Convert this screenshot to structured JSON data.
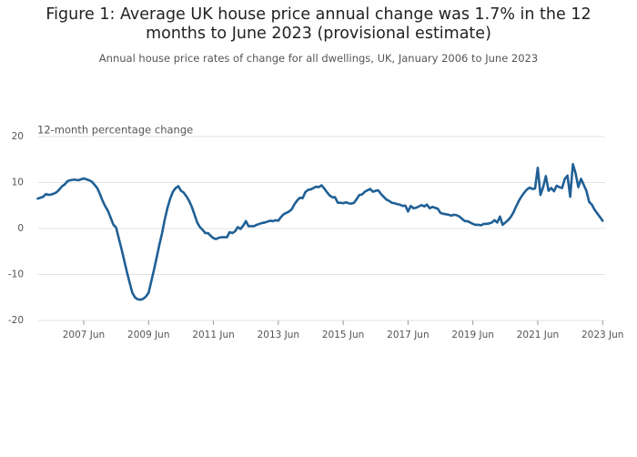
{
  "chart_data": {
    "type": "line",
    "title": "Figure 1: Average UK house price annual change was 1.7% in the 12 months to June 2023 (provisional estimate)",
    "subtitle": "Annual house price rates of change for all dwellings, UK, January 2006 to June 2023",
    "y_label": "12-month percentage change",
    "color": "#206095",
    "grid": true,
    "ylim": [
      -20,
      20
    ],
    "yticks": [
      -20,
      -10,
      0,
      10,
      20
    ],
    "xticks": [
      "2007 Jun",
      "2009 Jun",
      "2011 Jun",
      "2013 Jun",
      "2015 Jun",
      "2017 Jun",
      "2019 Jun",
      "2021 Jun",
      "2023 Jun"
    ],
    "x": [
      "2006 Jan",
      "2006 Feb",
      "2006 Mar",
      "2006 Apr",
      "2006 May",
      "2006 Jun",
      "2006 Jul",
      "2006 Aug",
      "2006 Sep",
      "2006 Oct",
      "2006 Nov",
      "2006 Dec",
      "2007 Jan",
      "2007 Feb",
      "2007 Mar",
      "2007 Apr",
      "2007 May",
      "2007 Jun",
      "2007 Jul",
      "2007 Aug",
      "2007 Sep",
      "2007 Oct",
      "2007 Nov",
      "2007 Dec",
      "2008 Jan",
      "2008 Feb",
      "2008 Mar",
      "2008 Apr",
      "2008 May",
      "2008 Jun",
      "2008 Jul",
      "2008 Aug",
      "2008 Sep",
      "2008 Oct",
      "2008 Nov",
      "2008 Dec",
      "2009 Jan",
      "2009 Feb",
      "2009 Mar",
      "2009 Apr",
      "2009 May",
      "2009 Jun",
      "2009 Jul",
      "2009 Aug",
      "2009 Sep",
      "2009 Oct",
      "2009 Nov",
      "2009 Dec",
      "2010 Jan",
      "2010 Feb",
      "2010 Mar",
      "2010 Apr",
      "2010 May",
      "2010 Jun",
      "2010 Jul",
      "2010 Aug",
      "2010 Sep",
      "2010 Oct",
      "2010 Nov",
      "2010 Dec",
      "2011 Jan",
      "2011 Feb",
      "2011 Mar",
      "2011 Apr",
      "2011 May",
      "2011 Jun",
      "2011 Jul",
      "2011 Aug",
      "2011 Sep",
      "2011 Oct",
      "2011 Nov",
      "2011 Dec",
      "2012 Jan",
      "2012 Feb",
      "2012 Mar",
      "2012 Apr",
      "2012 May",
      "2012 Jun",
      "2012 Jul",
      "2012 Aug",
      "2012 Sep",
      "2012 Oct",
      "2012 Nov",
      "2012 Dec",
      "2013 Jan",
      "2013 Feb",
      "2013 Mar",
      "2013 Apr",
      "2013 May",
      "2013 Jun",
      "2013 Jul",
      "2013 Aug",
      "2013 Sep",
      "2013 Oct",
      "2013 Nov",
      "2013 Dec",
      "2014 Jan",
      "2014 Feb",
      "2014 Mar",
      "2014 Apr",
      "2014 May",
      "2014 Jun",
      "2014 Jul",
      "2014 Aug",
      "2014 Sep",
      "2014 Oct",
      "2014 Nov",
      "2014 Dec",
      "2015 Jan",
      "2015 Feb",
      "2015 Mar",
      "2015 Apr",
      "2015 May",
      "2015 Jun",
      "2015 Jul",
      "2015 Aug",
      "2015 Sep",
      "2015 Oct",
      "2015 Nov",
      "2015 Dec",
      "2016 Jan",
      "2016 Feb",
      "2016 Mar",
      "2016 Apr",
      "2016 May",
      "2016 Jun",
      "2016 Jul",
      "2016 Aug",
      "2016 Sep",
      "2016 Oct",
      "2016 Nov",
      "2016 Dec",
      "2017 Jan",
      "2017 Feb",
      "2017 Mar",
      "2017 Apr",
      "2017 May",
      "2017 Jun",
      "2017 Jul",
      "2017 Aug",
      "2017 Sep",
      "2017 Oct",
      "2017 Nov",
      "2017 Dec",
      "2018 Jan",
      "2018 Feb",
      "2018 Mar",
      "2018 Apr",
      "2018 May",
      "2018 Jun",
      "2018 Jul",
      "2018 Aug",
      "2018 Sep",
      "2018 Oct",
      "2018 Nov",
      "2018 Dec",
      "2019 Jan",
      "2019 Feb",
      "2019 Mar",
      "2019 Apr",
      "2019 May",
      "2019 Jun",
      "2019 Jul",
      "2019 Aug",
      "2019 Sep",
      "2019 Oct",
      "2019 Nov",
      "2019 Dec",
      "2020 Jan",
      "2020 Feb",
      "2020 Mar",
      "2020 Apr",
      "2020 May",
      "2020 Jun",
      "2020 Jul",
      "2020 Aug",
      "2020 Sep",
      "2020 Oct",
      "2020 Nov",
      "2020 Dec",
      "2021 Jan",
      "2021 Feb",
      "2021 Mar",
      "2021 Apr",
      "2021 May",
      "2021 Jun",
      "2021 Jul",
      "2021 Aug",
      "2021 Sep",
      "2021 Oct",
      "2021 Nov",
      "2021 Dec",
      "2022 Jan",
      "2022 Feb",
      "2022 Mar",
      "2022 Apr",
      "2022 May",
      "2022 Jun",
      "2022 Jul",
      "2022 Aug",
      "2022 Sep",
      "2022 Oct",
      "2022 Nov",
      "2022 Dec",
      "2023 Jan",
      "2023 Feb",
      "2023 Mar",
      "2023 Apr",
      "2023 May",
      "2023 Jun"
    ],
    "values": [
      6.5,
      6.7,
      6.9,
      7.5,
      7.3,
      7.4,
      7.6,
      7.9,
      8.5,
      9.2,
      9.6,
      10.3,
      10.5,
      10.6,
      10.6,
      10.5,
      10.7,
      10.9,
      10.7,
      10.5,
      10.2,
      9.5,
      8.8,
      7.5,
      6.0,
      4.8,
      3.8,
      2.3,
      0.8,
      0.2,
      -2.2,
      -4.5,
      -7.0,
      -9.5,
      -11.8,
      -14.0,
      -15.0,
      -15.4,
      -15.5,
      -15.3,
      -14.8,
      -14.0,
      -11.5,
      -9.0,
      -6.3,
      -3.5,
      -1.0,
      2.0,
      4.5,
      6.5,
      8.0,
      8.8,
      9.2,
      8.2,
      7.8,
      7.0,
      6.0,
      4.7,
      3.0,
      1.3,
      0.3,
      -0.3,
      -1.0,
      -1.0,
      -1.6,
      -2.1,
      -2.3,
      -2.0,
      -1.9,
      -1.9,
      -1.9,
      -0.8,
      -1.0,
      -0.6,
      0.3,
      -0.1,
      0.6,
      1.6,
      0.5,
      0.5,
      0.5,
      0.8,
      1.0,
      1.2,
      1.3,
      1.5,
      1.7,
      1.6,
      1.8,
      1.7,
      2.5,
      3.1,
      3.4,
      3.7,
      4.2,
      5.3,
      6.1,
      6.7,
      6.6,
      7.9,
      8.4,
      8.5,
      8.8,
      9.1,
      9.0,
      9.4,
      8.7,
      7.9,
      7.2,
      6.8,
      6.8,
      5.6,
      5.6,
      5.5,
      5.7,
      5.5,
      5.4,
      5.6,
      6.4,
      7.3,
      7.4,
      8.0,
      8.3,
      8.6,
      8.0,
      8.2,
      8.3,
      7.5,
      6.9,
      6.3,
      6.0,
      5.6,
      5.5,
      5.3,
      5.2,
      4.9,
      5.0,
      3.7,
      4.9,
      4.4,
      4.5,
      4.8,
      5.1,
      4.8,
      5.2,
      4.4,
      4.7,
      4.5,
      4.3,
      3.4,
      3.2,
      3.1,
      3.0,
      2.8,
      3.0,
      2.9,
      2.6,
      2.1,
      1.6,
      1.6,
      1.3,
      1.0,
      0.8,
      0.8,
      0.7,
      1.0,
      1.0,
      1.1,
      1.3,
      1.8,
      1.3,
      2.6,
      0.8,
      1.3,
      1.8,
      2.5,
      3.5,
      4.8,
      6.0,
      7.0,
      7.8,
      8.5,
      8.9,
      8.6,
      8.7,
      13.2,
      7.3,
      9.0,
      11.4,
      8.2,
      8.8,
      8.1,
      9.3,
      9.0,
      8.8,
      10.8,
      11.5,
      6.9,
      14.0,
      12.0,
      9.0,
      10.8,
      9.5,
      8.2,
      5.8,
      5.2,
      4.1,
      3.3,
      2.5,
      1.7
    ]
  }
}
